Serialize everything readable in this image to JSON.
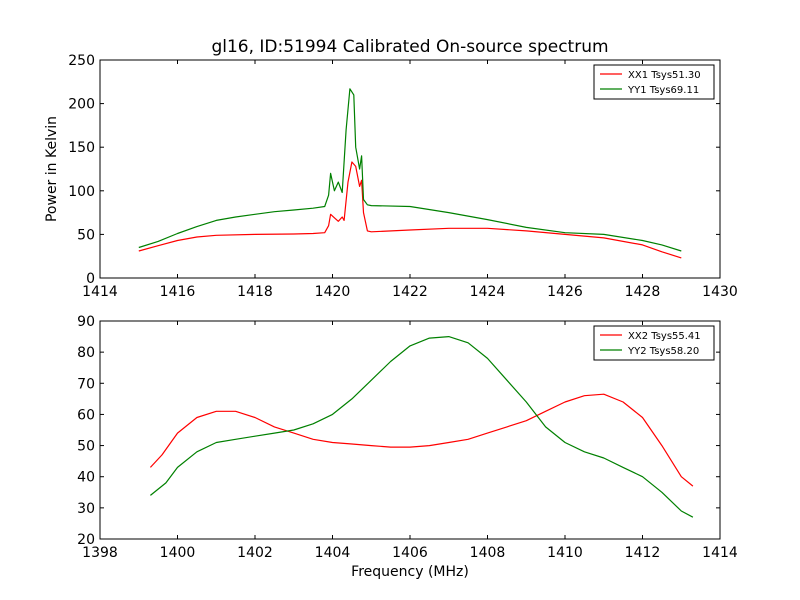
{
  "chart_data": [
    {
      "type": "line",
      "title": "gl16, ID:51994 Calibrated On-source spectrum",
      "xlabel": "",
      "ylabel": "Power in Kelvin",
      "xlim": [
        1414,
        1430
      ],
      "ylim": [
        0,
        250
      ],
      "xticks": [
        1414,
        1416,
        1418,
        1420,
        1422,
        1424,
        1426,
        1428,
        1430
      ],
      "yticks": [
        0,
        50,
        100,
        150,
        200,
        250
      ],
      "legend_position": "top-right",
      "series": [
        {
          "name": "XX1 Tsys51.30",
          "color": "#ff0000",
          "points": [
            [
              1415,
              31
            ],
            [
              1415.5,
              37
            ],
            [
              1416,
              43
            ],
            [
              1416.5,
              47
            ],
            [
              1417,
              49
            ],
            [
              1418,
              50
            ],
            [
              1419,
              50.5
            ],
            [
              1419.5,
              51
            ],
            [
              1419.8,
              52
            ],
            [
              1419.9,
              60
            ],
            [
              1419.95,
              73
            ],
            [
              1420.05,
              69
            ],
            [
              1420.15,
              65
            ],
            [
              1420.25,
              70
            ],
            [
              1420.3,
              66
            ],
            [
              1420.4,
              110
            ],
            [
              1420.5,
              133
            ],
            [
              1420.6,
              128
            ],
            [
              1420.7,
              105
            ],
            [
              1420.75,
              112
            ],
            [
              1420.8,
              75
            ],
            [
              1420.9,
              54
            ],
            [
              1421,
              53
            ],
            [
              1422,
              55
            ],
            [
              1423,
              57
            ],
            [
              1424,
              57
            ],
            [
              1425,
              54
            ],
            [
              1426,
              50
            ],
            [
              1427,
              46
            ],
            [
              1428,
              38
            ],
            [
              1428.5,
              30
            ],
            [
              1429,
              23
            ]
          ]
        },
        {
          "name": "YY1 Tsys69.11",
          "color": "#008000",
          "points": [
            [
              1415,
              35
            ],
            [
              1415.5,
              42
            ],
            [
              1416,
              51
            ],
            [
              1416.5,
              59
            ],
            [
              1417,
              66
            ],
            [
              1417.5,
              70
            ],
            [
              1418,
              73
            ],
            [
              1418.5,
              76
            ],
            [
              1419,
              78
            ],
            [
              1419.5,
              80
            ],
            [
              1419.8,
              82
            ],
            [
              1419.9,
              95
            ],
            [
              1419.95,
              120
            ],
            [
              1420.05,
              100
            ],
            [
              1420.15,
              110
            ],
            [
              1420.25,
              98
            ],
            [
              1420.35,
              170
            ],
            [
              1420.45,
              217
            ],
            [
              1420.55,
              210
            ],
            [
              1420.6,
              150
            ],
            [
              1420.7,
              125
            ],
            [
              1420.75,
              140
            ],
            [
              1420.8,
              90
            ],
            [
              1420.9,
              84
            ],
            [
              1421,
              83
            ],
            [
              1422,
              82
            ],
            [
              1423,
              75
            ],
            [
              1424,
              67
            ],
            [
              1425,
              58
            ],
            [
              1426,
              52
            ],
            [
              1427,
              50
            ],
            [
              1428,
              43
            ],
            [
              1428.5,
              38
            ],
            [
              1429,
              31
            ]
          ]
        }
      ]
    },
    {
      "type": "line",
      "title": "",
      "xlabel": "Frequency (MHz)",
      "ylabel": "",
      "xlim": [
        1398,
        1414
      ],
      "ylim": [
        20,
        90
      ],
      "xticks": [
        1398,
        1400,
        1402,
        1404,
        1406,
        1408,
        1410,
        1412,
        1414
      ],
      "yticks": [
        20,
        30,
        40,
        50,
        60,
        70,
        80,
        90
      ],
      "legend_position": "top-right",
      "series": [
        {
          "name": "XX2 Tsys55.41",
          "color": "#ff0000",
          "points": [
            [
              1399.3,
              43
            ],
            [
              1399.6,
              47
            ],
            [
              1400,
              54
            ],
            [
              1400.5,
              59
            ],
            [
              1401,
              61
            ],
            [
              1401.5,
              61
            ],
            [
              1402,
              59
            ],
            [
              1402.5,
              56
            ],
            [
              1403,
              54
            ],
            [
              1403.5,
              52
            ],
            [
              1404,
              51
            ],
            [
              1404.5,
              50.5
            ],
            [
              1405,
              50
            ],
            [
              1405.5,
              49.5
            ],
            [
              1406,
              49.5
            ],
            [
              1406.5,
              50
            ],
            [
              1407,
              51
            ],
            [
              1407.5,
              52
            ],
            [
              1408,
              54
            ],
            [
              1408.5,
              56
            ],
            [
              1409,
              58
            ],
            [
              1409.5,
              61
            ],
            [
              1410,
              64
            ],
            [
              1410.5,
              66
            ],
            [
              1411,
              66.5
            ],
            [
              1411.5,
              64
            ],
            [
              1412,
              59
            ],
            [
              1412.5,
              50
            ],
            [
              1413,
              40
            ],
            [
              1413.3,
              37
            ]
          ]
        },
        {
          "name": "YY2 Tsys58.20",
          "color": "#008000",
          "points": [
            [
              1399.3,
              34
            ],
            [
              1399.7,
              38
            ],
            [
              1400,
              43
            ],
            [
              1400.5,
              48
            ],
            [
              1401,
              51
            ],
            [
              1401.5,
              52
            ],
            [
              1402,
              53
            ],
            [
              1402.5,
              54
            ],
            [
              1403,
              55
            ],
            [
              1403.5,
              57
            ],
            [
              1404,
              60
            ],
            [
              1404.5,
              65
            ],
            [
              1405,
              71
            ],
            [
              1405.5,
              77
            ],
            [
              1406,
              82
            ],
            [
              1406.5,
              84.5
            ],
            [
              1407,
              85
            ],
            [
              1407.5,
              83
            ],
            [
              1408,
              78
            ],
            [
              1408.5,
              71
            ],
            [
              1409,
              64
            ],
            [
              1409.5,
              56
            ],
            [
              1410,
              51
            ],
            [
              1410.5,
              48
            ],
            [
              1411,
              46
            ],
            [
              1411.5,
              43
            ],
            [
              1412,
              40
            ],
            [
              1412.5,
              35
            ],
            [
              1413,
              29
            ],
            [
              1413.3,
              27
            ]
          ]
        }
      ]
    }
  ]
}
